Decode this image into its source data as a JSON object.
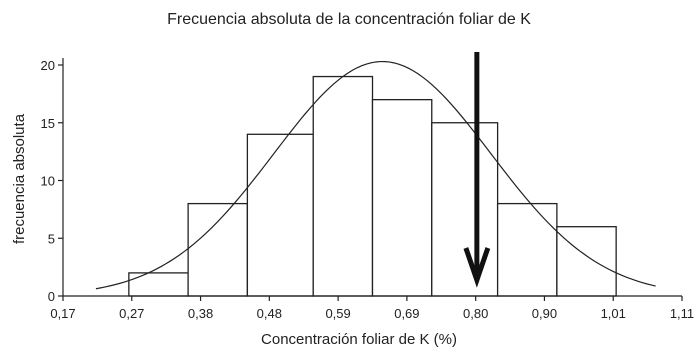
{
  "chart_data": {
    "type": "bar",
    "title": "Frecuencia absoluta de la concentración foliar de K",
    "xlabel": "Concentración foliar de K (%)",
    "ylabel": "frecuencia absoluta",
    "x_ticks": [
      "0,17",
      "0,27",
      "0,38",
      "0,48",
      "0,59",
      "0,69",
      "0,80",
      "0,90",
      "1,01",
      "1,11"
    ],
    "y_ticks": [
      "0",
      "5",
      "10",
      "15",
      "20"
    ],
    "xlim": [
      0.17,
      1.11
    ],
    "ylim": [
      0,
      22
    ],
    "bins": [
      {
        "start": 0.27,
        "end": 0.36,
        "value": 2
      },
      {
        "start": 0.36,
        "end": 0.45,
        "value": 8
      },
      {
        "start": 0.45,
        "end": 0.55,
        "value": 14
      },
      {
        "start": 0.55,
        "end": 0.64,
        "value": 19
      },
      {
        "start": 0.64,
        "end": 0.73,
        "value": 17
      },
      {
        "start": 0.73,
        "end": 0.83,
        "value": 15
      },
      {
        "start": 0.83,
        "end": 0.92,
        "value": 8
      },
      {
        "start": 0.92,
        "end": 1.01,
        "value": 6
      }
    ],
    "normal_curve": {
      "mean": 0.655,
      "sd": 0.165,
      "peak": 20.3,
      "x_range": [
        0.22,
        1.07
      ]
    },
    "marker_arrow": {
      "x": 0.8,
      "direction": "down"
    }
  }
}
